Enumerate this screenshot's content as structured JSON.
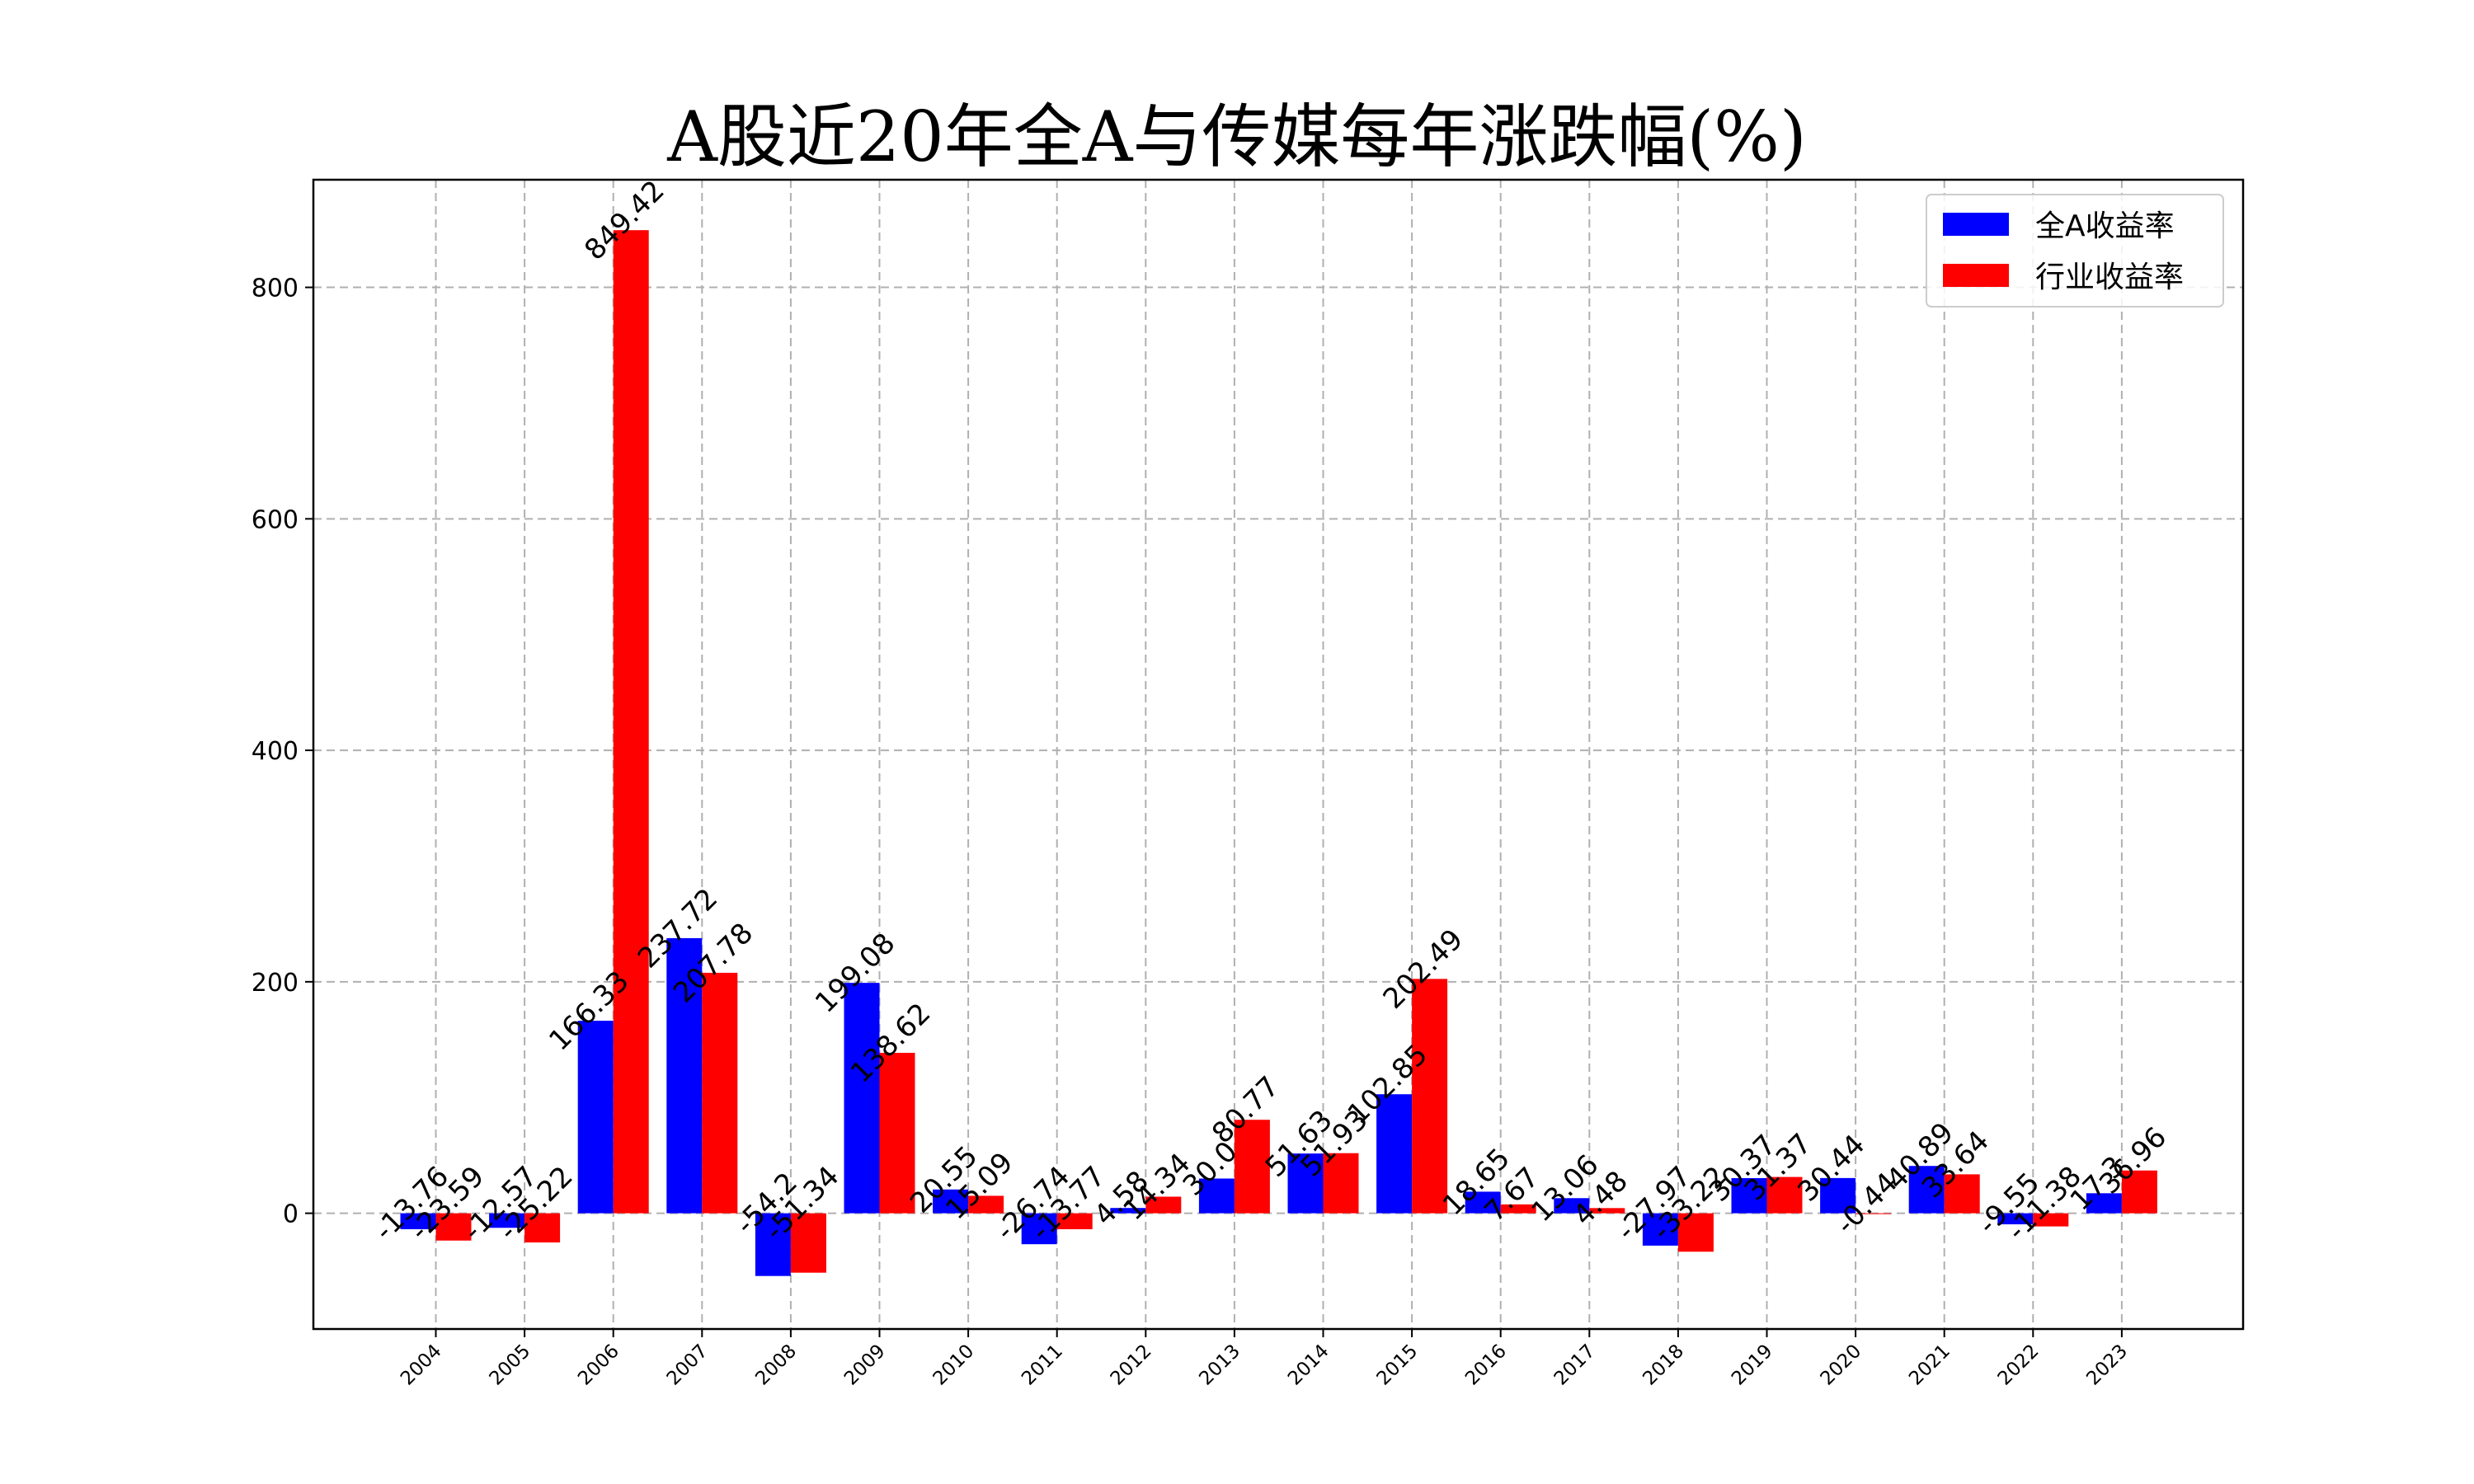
{
  "chart_data": {
    "type": "bar",
    "title": "A股近20年全A与传媒每年涨跌幅(%)",
    "xlabel": "",
    "ylabel": "",
    "categories": [
      "2004",
      "2005",
      "2006",
      "2007",
      "2008",
      "2009",
      "2010",
      "2011",
      "2012",
      "2013",
      "2014",
      "2015",
      "2016",
      "2017",
      "2018",
      "2019",
      "2020",
      "2021",
      "2022",
      "2023"
    ],
    "series": [
      {
        "name": "全A收益率",
        "color": "#0000ff",
        "values": [
          -13.76,
          -12.57,
          166.33,
          237.72,
          -54.2,
          199.08,
          20.55,
          -26.74,
          4.58,
          30.0,
          51.63,
          102.85,
          18.65,
          13.06,
          -27.97,
          30.37,
          30.44,
          40.89,
          -9.55,
          17.3
        ],
        "labels": [
          "-13.76",
          "-12.57",
          "166.33",
          "237.72",
          "-54.2",
          "199.08",
          "20.55",
          "-26.74",
          "4.58",
          "30.0",
          "51.63",
          "102.85",
          "18.65",
          "13.06",
          "-27.97",
          "30.37",
          "30.44",
          "40.89",
          "-9.55",
          "17.3"
        ]
      },
      {
        "name": "行业收益率",
        "color": "#ff0000",
        "values": [
          -23.59,
          -25.22,
          849.42,
          207.78,
          -51.34,
          138.62,
          15.09,
          -13.77,
          14.34,
          80.77,
          51.93,
          202.49,
          7.67,
          4.48,
          -33.22,
          31.37,
          -0.44,
          33.64,
          -11.38,
          36.96
        ],
        "labels": [
          "-23.59",
          "-25.22",
          "849.42",
          "207.78",
          "-51.34",
          "138.62",
          "15.09",
          "-13.77",
          "14.34",
          "80.77",
          "51.93",
          "202.49",
          "7.67",
          "4.48",
          "-33.22",
          "31.37",
          "-0.44",
          "33.64",
          "-11.38",
          "36.96"
        ]
      }
    ],
    "ylim": [
      -100,
      893
    ],
    "yticks": [
      0,
      200,
      400,
      600,
      800
    ],
    "grid": true,
    "legend_position": "upper right"
  }
}
